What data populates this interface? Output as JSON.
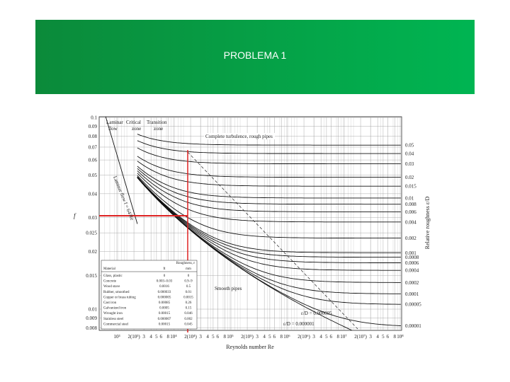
{
  "header": {
    "title": "PROBLEMA 1"
  },
  "moody": {
    "y_label": "f",
    "x_label": "Reynolds number Re",
    "y2_label": "Relative roughness ε/D",
    "f_ticks": [
      "0.1",
      "0.09",
      "0.08",
      "0.07",
      "0.06",
      "0.05",
      "0.04",
      "0.03",
      "0.025",
      "0.02",
      "0.015",
      "0.01",
      "0.009",
      "0.008"
    ],
    "rel_roughness_ticks": [
      "0.05",
      "0.04",
      "0.03",
      "0.02",
      "0.015",
      "0.01",
      "0.008",
      "0.006",
      "0.004",
      "0.002",
      "0.001",
      "0.0008",
      "0.0006",
      "0.0004",
      "0.0002",
      "0.0001",
      "0.00005",
      "0.00001"
    ],
    "re_ticks": [
      "10³",
      "2(10³)",
      "3",
      "4",
      "5",
      "6",
      "8",
      "10⁴",
      "2(10⁴)",
      "3",
      "4",
      "5",
      "6",
      "8",
      "10⁵",
      "2(10⁵)",
      "3",
      "4",
      "5",
      "6",
      "8",
      "10⁶",
      "2(10⁶)",
      "3",
      "4",
      "5",
      "6",
      "8",
      "10⁷",
      "2(10⁷)",
      "3",
      "4",
      "5",
      "6",
      "8",
      "10⁸"
    ],
    "zones": {
      "laminar": "Laminar",
      "critical": "Critical",
      "transition": "Transition",
      "flow": "flow",
      "zone_a": "zone",
      "zone_b": "zone"
    },
    "annotations": {
      "rough": "Complete turbulence, rough pipes",
      "laminar_line": "Laminar flow f = 64/Re",
      "smooth": "Smooth pipes",
      "e1": "ε/D = 0.000005",
      "e2": "ε/D = 0.000001"
    },
    "table": {
      "caption": "Roughness, ε",
      "header": [
        "Material",
        "ft",
        "mm"
      ],
      "rows": [
        [
          "Glass, plastic",
          "0",
          "0"
        ],
        [
          "Concrete",
          "0.003–0.03",
          "0.9–9"
        ],
        [
          "Wood stave",
          "0.0016",
          "0.5"
        ],
        [
          "Rubber, smoothed",
          "0.000033",
          "0.01"
        ],
        [
          "Copper or brass tubing",
          "0.000005",
          "0.0015"
        ],
        [
          "Cast iron",
          "0.00085",
          "0.26"
        ],
        [
          "Galvanized iron",
          "0.0005",
          "0.15"
        ],
        [
          "Wrought iron",
          "0.00015",
          "0.046"
        ],
        [
          "Stainless steel",
          "0.000007",
          "0.002"
        ],
        [
          "Commercial steel",
          "0.00015",
          "0.045"
        ]
      ]
    }
  }
}
